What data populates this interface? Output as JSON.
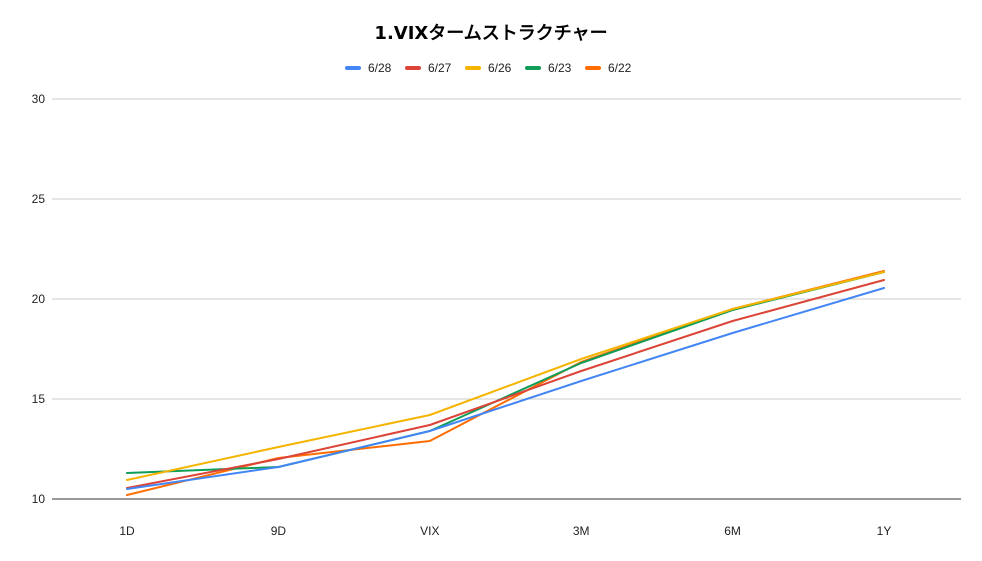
{
  "chart_data": {
    "type": "line",
    "title": "1.VIXタームストラクチャー",
    "xlabel": "",
    "ylabel": "",
    "categories": [
      "1D",
      "9D",
      "VIX",
      "3M",
      "6M",
      "1Y"
    ],
    "ylim": [
      10,
      30
    ],
    "yticks": [
      10,
      15,
      20,
      25,
      30
    ],
    "grid": true,
    "legend_position": "top",
    "series": [
      {
        "name": "6/28",
        "color": "#4285f4",
        "values": [
          10.5,
          11.6,
          13.4,
          15.9,
          18.3,
          20.55
        ]
      },
      {
        "name": "6/27",
        "color": "#db4437",
        "values": [
          10.55,
          12.0,
          13.7,
          16.4,
          18.9,
          20.95
        ]
      },
      {
        "name": "6/26",
        "color": "#f4b400",
        "values": [
          10.95,
          12.6,
          14.2,
          17.0,
          19.5,
          21.35
        ]
      },
      {
        "name": "6/23",
        "color": "#0f9d58",
        "values": [
          11.3,
          11.6,
          13.4,
          16.8,
          19.45,
          21.35
        ]
      },
      {
        "name": "6/22",
        "color": "#ff6d01",
        "values": [
          10.2,
          12.05,
          12.9,
          16.85,
          19.5,
          21.4
        ]
      }
    ]
  }
}
